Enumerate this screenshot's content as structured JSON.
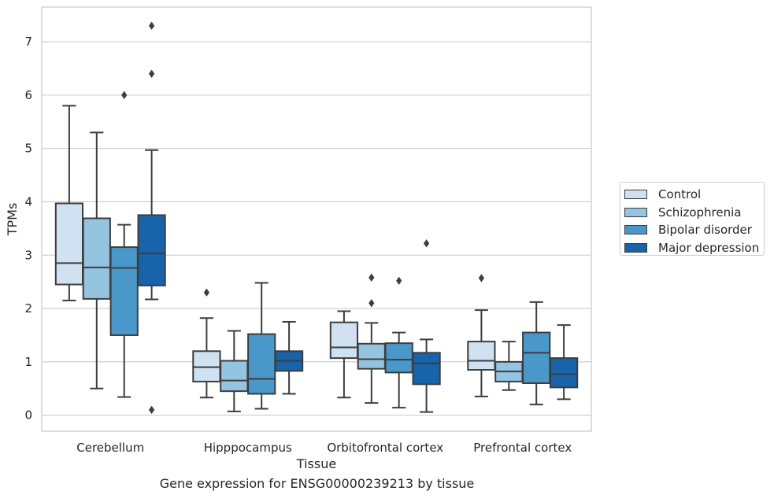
{
  "caption": "Gene expression for ENSG00000239213 by tissue",
  "chart_data": {
    "type": "box",
    "xlabel": "Tissue",
    "ylabel": "TPMs",
    "ylim": [
      -0.3,
      7.65
    ],
    "yticks": [
      0,
      1,
      2,
      3,
      4,
      5,
      6,
      7
    ],
    "grid": "horizontal",
    "legend_position": "right",
    "categories": [
      "Cerebellum",
      "Hipppocampus",
      "Orbitofrontal cortex",
      "Prefrontal cortex"
    ],
    "series": [
      {
        "name": "Control",
        "color": "#d0e1f2",
        "boxes": [
          {
            "whislo": 2.15,
            "q1": 2.45,
            "med": 2.85,
            "q3": 3.97,
            "whishi": 5.8,
            "fliers": []
          },
          {
            "whislo": 0.33,
            "q1": 0.63,
            "med": 0.9,
            "q3": 1.2,
            "whishi": 1.82,
            "fliers": [
              2.3
            ]
          },
          {
            "whislo": 0.33,
            "q1": 1.07,
            "med": 1.27,
            "q3": 1.74,
            "whishi": 1.95,
            "fliers": []
          },
          {
            "whislo": 0.35,
            "q1": 0.85,
            "med": 1.02,
            "q3": 1.38,
            "whishi": 1.97,
            "fliers": [
              2.57
            ]
          }
        ]
      },
      {
        "name": "Schizophrenia",
        "color": "#94c4df",
        "boxes": [
          {
            "whislo": 0.5,
            "q1": 2.18,
            "med": 2.77,
            "q3": 3.69,
            "whishi": 5.3,
            "fliers": []
          },
          {
            "whislo": 0.07,
            "q1": 0.45,
            "med": 0.65,
            "q3": 1.02,
            "whishi": 1.58,
            "fliers": []
          },
          {
            "whislo": 0.23,
            "q1": 0.87,
            "med": 1.05,
            "q3": 1.34,
            "whishi": 1.73,
            "fliers": [
              2.1,
              2.58
            ]
          },
          {
            "whislo": 0.47,
            "q1": 0.63,
            "med": 0.82,
            "q3": 1.0,
            "whishi": 1.38,
            "fliers": []
          }
        ]
      },
      {
        "name": "Bipolar disorder",
        "color": "#4a98c9",
        "boxes": [
          {
            "whislo": 0.34,
            "q1": 1.5,
            "med": 2.76,
            "q3": 3.15,
            "whishi": 3.57,
            "fliers": [
              6.0
            ]
          },
          {
            "whislo": 0.12,
            "q1": 0.4,
            "med": 0.68,
            "q3": 1.52,
            "whishi": 2.48,
            "fliers": []
          },
          {
            "whislo": 0.14,
            "q1": 0.8,
            "med": 1.04,
            "q3": 1.35,
            "whishi": 1.55,
            "fliers": [
              2.52
            ]
          },
          {
            "whislo": 0.2,
            "q1": 0.6,
            "med": 1.17,
            "q3": 1.55,
            "whishi": 2.12,
            "fliers": []
          }
        ]
      },
      {
        "name": "Major depression",
        "color": "#1764ab",
        "boxes": [
          {
            "whislo": 2.17,
            "q1": 2.43,
            "med": 3.03,
            "q3": 3.75,
            "whishi": 4.97,
            "fliers": [
              0.1,
              6.4,
              7.3
            ]
          },
          {
            "whislo": 0.4,
            "q1": 0.83,
            "med": 1.02,
            "q3": 1.2,
            "whishi": 1.75,
            "fliers": []
          },
          {
            "whislo": 0.06,
            "q1": 0.58,
            "med": 0.97,
            "q3": 1.17,
            "whishi": 1.42,
            "fliers": [
              3.22
            ]
          },
          {
            "whislo": 0.3,
            "q1": 0.52,
            "med": 0.77,
            "q3": 1.07,
            "whishi": 1.69,
            "fliers": []
          }
        ]
      }
    ]
  }
}
